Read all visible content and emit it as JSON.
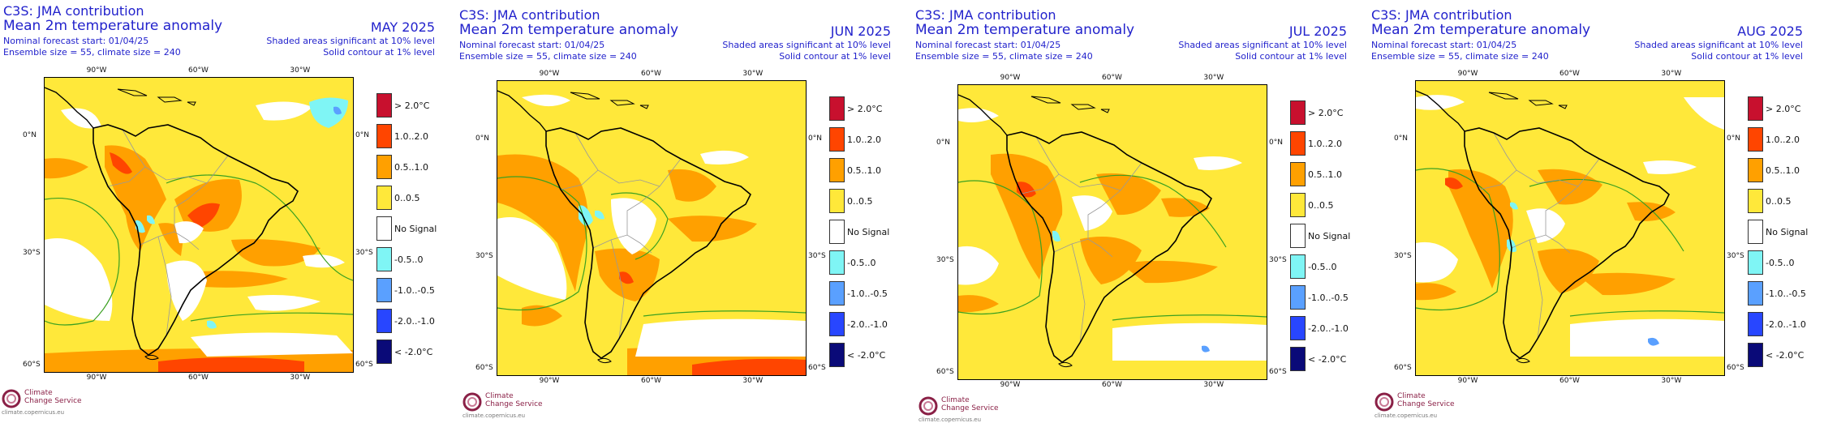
{
  "panels": [
    {
      "title": "C3S: JMA contribution",
      "subtitle": "Mean 2m temperature anomaly",
      "forecast_start": "Nominal forecast start: 01/04/25",
      "ensemble": "Ensemble size = 55, climate size = 240",
      "month": "MAY 2025",
      "sig10": "Shaded areas significant at 10% level",
      "sig1": "Solid contour at 1% level",
      "x_ticks": [
        "90°W",
        "60°W",
        "30°W"
      ],
      "y_left": [
        "0°N",
        "30°S",
        "60°S"
      ],
      "y_right": [
        "0°N",
        "30°S",
        "60°S"
      ]
    },
    {
      "title": "C3S: JMA contribution",
      "subtitle": "Mean 2m temperature anomaly",
      "forecast_start": "Nominal forecast start: 01/04/25",
      "ensemble": "Ensemble size = 55, climate size = 240",
      "month": "JUN 2025",
      "sig10": "Shaded areas significant at 10% level",
      "sig1": "Solid contour at 1% level",
      "x_ticks": [
        "90°W",
        "60°W",
        "30°W"
      ],
      "x_ticks_bottom": [
        "90°W",
        "60°W",
        "30°W"
      ],
      "y_left": [
        "0°N",
        "30°S",
        "60°S"
      ],
      "y_right": [
        "0°N",
        "30°S",
        "60°S"
      ]
    },
    {
      "title": "C3S: JMA contribution",
      "subtitle": "Mean 2m temperature anomaly",
      "forecast_start": "Nominal forecast start: 01/04/25",
      "ensemble": "Ensemble size = 55, climate size = 240",
      "month": "JUL 2025",
      "sig10": "Shaded areas significant at 10% level",
      "sig1": "Solid contour at 1% level",
      "x_ticks": [
        "90°W",
        "60°W",
        "30°W"
      ],
      "y_left": [
        "0°N",
        "30°S",
        "60°S"
      ],
      "y_right": [
        "0°N",
        "30°S",
        "60°S"
      ]
    },
    {
      "title": "C3S: JMA contribution",
      "subtitle": "Mean 2m temperature anomaly",
      "forecast_start": "Nominal forecast start: 01/04/25",
      "ensemble": "Ensemble size = 55, climate size = 240",
      "month": "AUG 2025",
      "sig10": "Shaded areas significant at 10% level",
      "sig1": "Solid contour at 1% level",
      "x_ticks": [
        "90°W",
        "60°W",
        "30°W"
      ],
      "y_left": [
        "0°N",
        "30°S",
        "60°S"
      ],
      "y_right": [
        "0°N",
        "30°S",
        "60°S"
      ]
    }
  ],
  "legend": [
    {
      "label": "> 2.0°C",
      "color": "#c8102e"
    },
    {
      "label": "1.0..2.0",
      "color": "#ff4500"
    },
    {
      "label": "0.5..1.0",
      "color": "#ffa000"
    },
    {
      "label": "0..0.5",
      "color": "#ffe83a"
    },
    {
      "label": "No Signal",
      "color": "#ffffff"
    },
    {
      "label": "-0.5..0",
      "color": "#7ff5f5"
    },
    {
      "label": "-1.0..-0.5",
      "color": "#5aa0ff"
    },
    {
      "label": "-2.0..-1.0",
      "color": "#2846ff"
    },
    {
      "label": "< -2.0°C",
      "color": "#0a0a78"
    }
  ],
  "logo": {
    "line1": "Climate",
    "line2": "Change Service",
    "url": "climate.copernicus.eu"
  }
}
